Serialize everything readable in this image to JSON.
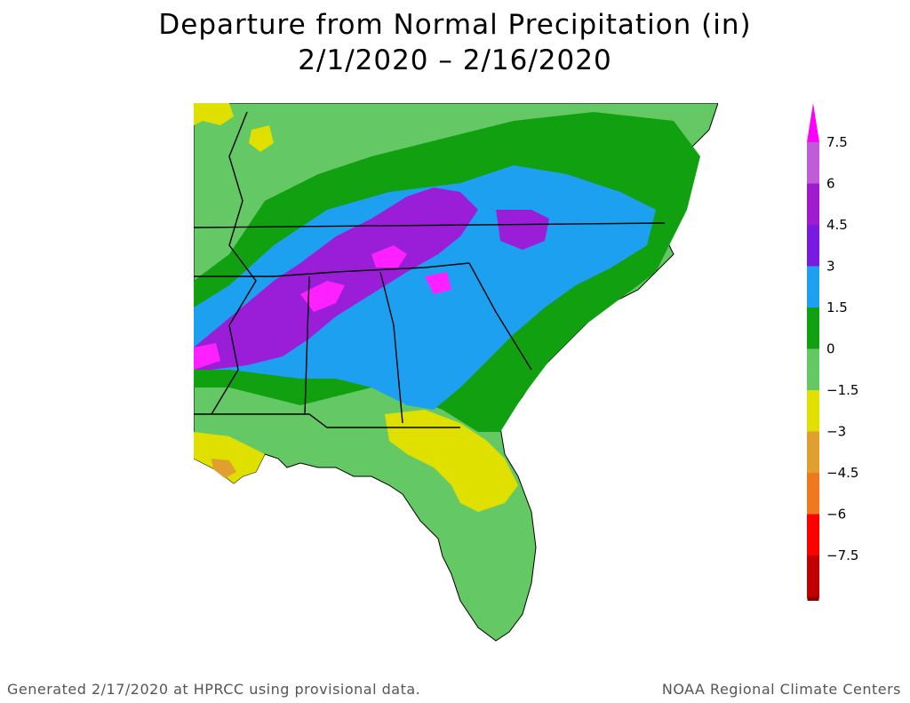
{
  "title": {
    "line1": "Departure from Normal Precipitation (in)",
    "line2": "2/1/2020 – 2/16/2020"
  },
  "legend": {
    "bins": [
      {
        "label": "7.5",
        "color": "#c05cd8"
      },
      {
        "label": "6",
        "color": "#a01ad0"
      },
      {
        "label": "4.5",
        "color": "#7a1ae0"
      },
      {
        "label": "3",
        "color": "#1ea0f0"
      },
      {
        "label": "1.5",
        "color": "#10a010"
      },
      {
        "label": "0",
        "color": "#64c864"
      },
      {
        "label": "−1.5",
        "color": "#e0e000"
      },
      {
        "label": "−3",
        "color": "#e0a030"
      },
      {
        "label": "−4.5",
        "color": "#f07820"
      },
      {
        "label": "−6",
        "color": "#ff0000"
      },
      {
        "label": "−7.5",
        "color": "#c00000"
      }
    ],
    "top_cap_color": "#ff00ff",
    "bottom_cap_color": "#8a0000"
  },
  "colors": {
    "above_4_5": "#9a1ed8",
    "above_6": "#ff20ff",
    "above_3": "#1ea0f0",
    "above_1_5": "#10a010",
    "above_0": "#64c864",
    "below_0": "#e0e000",
    "below_1_5": "#e0a030"
  },
  "footer": {
    "left": "Generated 2/17/2020 at HPRCC using provisional data.",
    "right": "NOAA Regional Climate Centers"
  }
}
